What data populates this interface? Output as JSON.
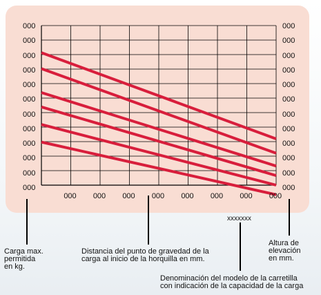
{
  "chart_data": {
    "type": "line",
    "y_ticks_left": [
      "000",
      "000",
      "000",
      "000",
      "000",
      "000",
      "000",
      "000",
      "000",
      "000",
      "000",
      "000"
    ],
    "y_ticks_right": [
      "000",
      "000",
      "000",
      "000",
      "000",
      "000",
      "000",
      "000",
      "000",
      "000",
      "000",
      "000"
    ],
    "x_ticks": [
      "000",
      "000",
      "000",
      "000",
      "000",
      "000",
      "000",
      "000"
    ],
    "series_color": "#d81e3c",
    "grid": true,
    "series": [
      {
        "values": [
          0.83,
          0.29
        ]
      },
      {
        "values": [
          0.73,
          0.2
        ]
      },
      {
        "values": [
          0.58,
          0.12
        ]
      },
      {
        "values": [
          0.49,
          0.06
        ]
      },
      {
        "values": [
          0.38,
          0.0
        ]
      },
      {
        "values": [
          0.27,
          -0.06
        ]
      }
    ]
  },
  "model_code": "xxxxxxx",
  "callouts": {
    "load": [
      "Carga max.",
      "permitida",
      "en kg."
    ],
    "distance": [
      "Distancia del punto de gravedad de la",
      "carga al inicio de la horquilla en mm."
    ],
    "height": [
      "Altura de",
      "elevación",
      "en mm."
    ],
    "model": [
      "Denominación del modelo de la carretilla",
      "con indicación de la capacidad de la carga"
    ]
  },
  "colors": {
    "panel": "#f9ddd3",
    "line": "#d81e3c",
    "grid": "#000000"
  }
}
